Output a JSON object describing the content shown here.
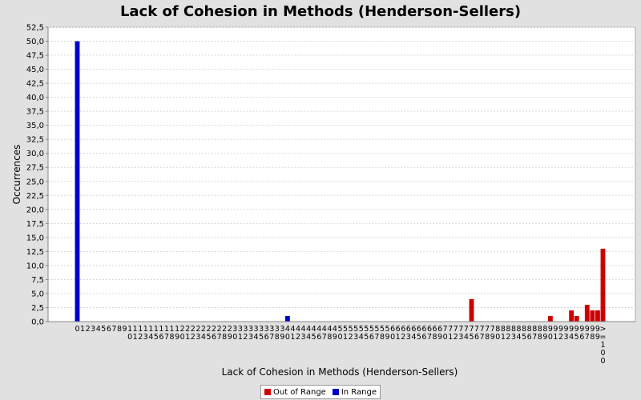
{
  "chart_data": {
    "type": "bar",
    "title": "Lack of Cohesion in Methods (Henderson-Sellers)",
    "xlabel": "Lack of Cohesion in Methods (Henderson-Sellers)",
    "ylabel": "Occurrences",
    "ylim": [
      0,
      52.5
    ],
    "ytick_step": 2.5,
    "grid": true,
    "legend_position": "bottom",
    "categories": [
      "0",
      "1",
      "2",
      "3",
      "4",
      "5",
      "6",
      "7",
      "8",
      "9",
      "10",
      "11",
      "12",
      "13",
      "14",
      "15",
      "16",
      "17",
      "18",
      "19",
      "20",
      "21",
      "22",
      "23",
      "24",
      "25",
      "26",
      "27",
      "28",
      "29",
      "30",
      "31",
      "32",
      "33",
      "34",
      "35",
      "36",
      "37",
      "38",
      "39",
      "40",
      "41",
      "42",
      "43",
      "44",
      "45",
      "46",
      "47",
      "48",
      "49",
      "50",
      "51",
      "52",
      "53",
      "54",
      "55",
      "56",
      "57",
      "58",
      "59",
      "60",
      "61",
      "62",
      "63",
      "64",
      "65",
      "66",
      "67",
      "68",
      "69",
      "70",
      "71",
      "72",
      "73",
      "74",
      "75",
      "76",
      "77",
      "78",
      "79",
      "80",
      "81",
      "82",
      "83",
      "84",
      "85",
      "86",
      "87",
      "88",
      "89",
      "90",
      "91",
      "92",
      "93",
      "94",
      "95",
      "96",
      "97",
      "98",
      "99",
      ">=100"
    ],
    "series": [
      {
        "name": "Out of Range",
        "color": "#cc0000",
        "values": [
          0,
          0,
          0,
          0,
          0,
          0,
          0,
          0,
          0,
          0,
          0,
          0,
          0,
          0,
          0,
          0,
          0,
          0,
          0,
          0,
          0,
          0,
          0,
          0,
          0,
          0,
          0,
          0,
          0,
          0,
          0,
          0,
          0,
          0,
          0,
          0,
          0,
          0,
          0,
          0,
          0,
          0,
          0,
          0,
          0,
          0,
          0,
          0,
          0,
          0,
          0,
          0,
          0,
          0,
          0,
          0,
          0,
          0,
          0,
          0,
          0,
          0,
          0,
          0,
          0,
          0,
          0,
          0,
          0,
          0,
          0,
          0,
          0,
          0,
          0,
          4,
          0,
          0,
          0,
          0,
          0,
          0,
          0,
          0,
          0,
          0,
          0,
          0,
          0,
          0,
          1,
          0,
          0,
          0,
          2,
          1,
          0,
          3,
          2,
          2,
          13
        ]
      },
      {
        "name": "In Range",
        "color": "#0000cc",
        "values": [
          50,
          0,
          0,
          0,
          0,
          0,
          0,
          0,
          0,
          0,
          0,
          0,
          0,
          0,
          0,
          0,
          0,
          0,
          0,
          0,
          0,
          0,
          0,
          0,
          0,
          0,
          0,
          0,
          0,
          0,
          0,
          0,
          0,
          0,
          0,
          0,
          0,
          0,
          0,
          0,
          1,
          0,
          0,
          0,
          0,
          0,
          0,
          0,
          0,
          0,
          0,
          0,
          0,
          0,
          0,
          0,
          0,
          0,
          0,
          0,
          0,
          0,
          0,
          0,
          0,
          0,
          0,
          0,
          0,
          0,
          0,
          0,
          0,
          0,
          0,
          0,
          0,
          0,
          0,
          0,
          0,
          0,
          0,
          0,
          0,
          0,
          0,
          0,
          0,
          0,
          0,
          0,
          0,
          0,
          0,
          0,
          0,
          0,
          0,
          0,
          0
        ]
      }
    ],
    "ytick_labels": [
      "0,0",
      "2,5",
      "5,0",
      "7,5",
      "10,0",
      "12,5",
      "15,0",
      "17,5",
      "20,0",
      "22,5",
      "25,0",
      "27,5",
      "30,0",
      "32,5",
      "35,0",
      "37,5",
      "40,0",
      "42,5",
      "45,0",
      "47,5",
      "50,0",
      "52,5"
    ]
  }
}
